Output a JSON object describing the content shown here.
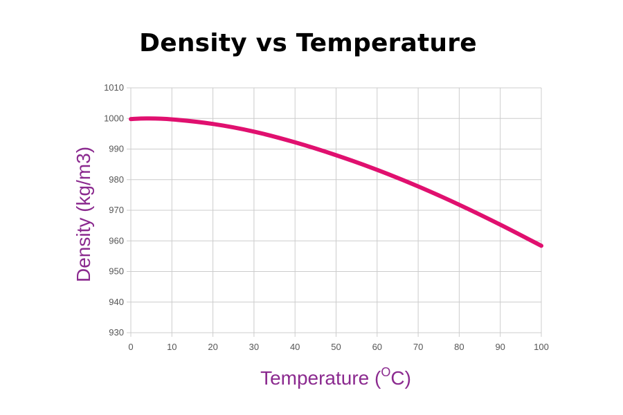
{
  "chart_data": {
    "type": "line",
    "title": "Density vs Temperature",
    "xlabel": "Temperature (",
    "xlabel_sup": "O",
    "xlabel_suffix": "C)",
    "ylabel": "Density (kg/m3)",
    "xlim": [
      0,
      100
    ],
    "ylim": [
      930,
      1010
    ],
    "x_ticks": [
      0,
      10,
      20,
      30,
      40,
      50,
      60,
      70,
      80,
      90,
      100
    ],
    "y_ticks": [
      930,
      940,
      950,
      960,
      970,
      980,
      990,
      1000,
      1010
    ],
    "grid": true,
    "series": [
      {
        "color": "#e0106f",
        "x": [
          0,
          4,
          10,
          20,
          30,
          40,
          50,
          60,
          70,
          80,
          90,
          100
        ],
        "y": [
          999.8,
          1000.0,
          999.7,
          998.2,
          995.7,
          992.2,
          988.0,
          983.2,
          977.8,
          971.8,
          965.3,
          958.4
        ]
      }
    ],
    "axis_title_color": "#8b2a8f"
  }
}
